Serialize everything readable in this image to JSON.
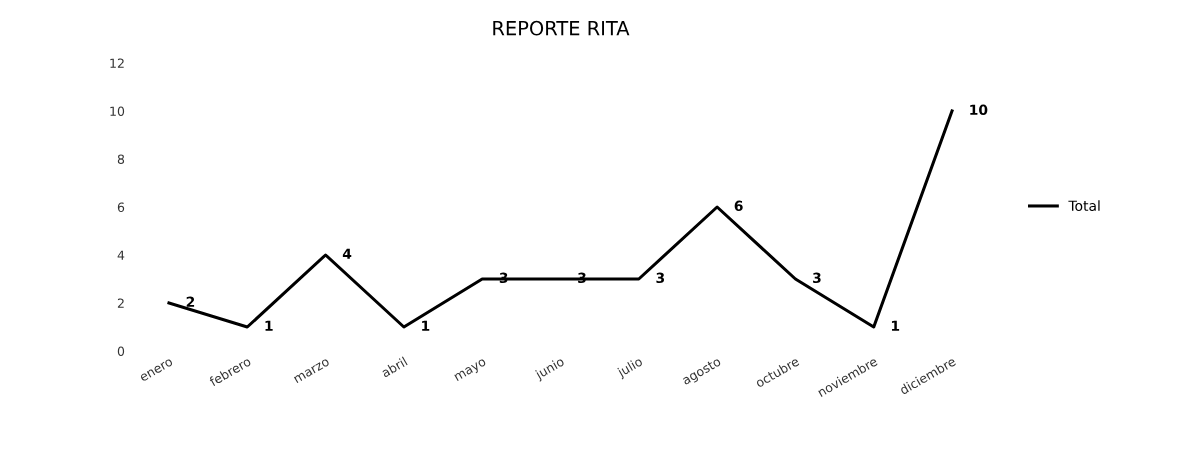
{
  "chart_data": {
    "type": "line",
    "title": "REPORTE RITA",
    "categories": [
      "enero",
      "febrero",
      "marzo",
      "abril",
      "mayo",
      "junio",
      "julio",
      "agosto",
      "octubre",
      "noviembre",
      "diciembre"
    ],
    "series": [
      {
        "name": "Total",
        "color": "#000000",
        "values": [
          2,
          1,
          4,
          1,
          3,
          3,
          3,
          6,
          3,
          1,
          10
        ]
      }
    ],
    "ylim": [
      0,
      12
    ],
    "yticks": [
      0,
      2,
      4,
      6,
      8,
      10,
      12
    ],
    "data_labels": true,
    "legend": "right",
    "grid": false,
    "marker": "none",
    "line_style": "solid"
  }
}
